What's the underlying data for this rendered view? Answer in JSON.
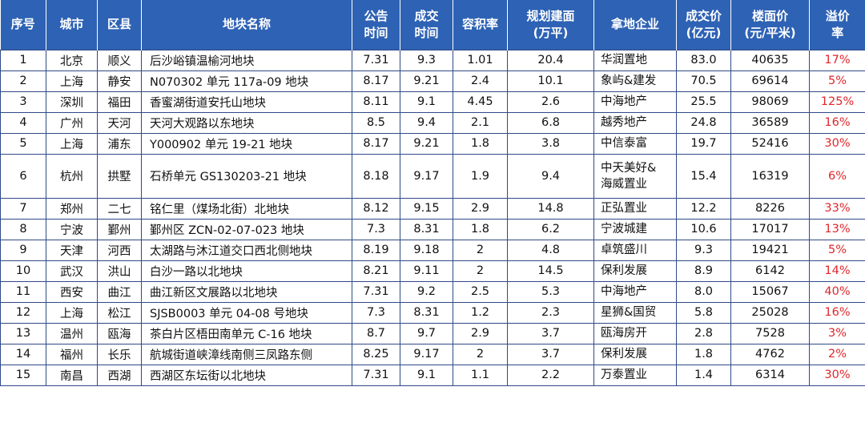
{
  "table": {
    "headers": [
      [
        "序号"
      ],
      [
        "城市"
      ],
      [
        "区县"
      ],
      [
        "地块名称"
      ],
      [
        "公告",
        "时间"
      ],
      [
        "成交",
        "时间"
      ],
      [
        "容积率"
      ],
      [
        "规划建面",
        "(万平)"
      ],
      [
        "拿地企业"
      ],
      [
        "成交价",
        "(亿元)"
      ],
      [
        "楼面价",
        "(元/平米)"
      ],
      [
        "溢价",
        "率"
      ]
    ],
    "rows": [
      {
        "no": "1",
        "city": "北京",
        "district": "顺义",
        "name": "后沙峪镇温榆河地块",
        "announce": "7.31",
        "deal": "9.3",
        "far": "1.01",
        "area": "20.4",
        "company": [
          "华润置地"
        ],
        "price": "83.0",
        "floor_price": "40635",
        "premium": "17%"
      },
      {
        "no": "2",
        "city": "上海",
        "district": "静安",
        "name": "N070302 单元 117a-09 地块",
        "announce": "8.17",
        "deal": "9.21",
        "far": "2.4",
        "area": "10.1",
        "company": [
          "象屿&建发"
        ],
        "price": "70.5",
        "floor_price": "69614",
        "premium": "5%"
      },
      {
        "no": "3",
        "city": "深圳",
        "district": "福田",
        "name": "香蜜湖街道安托山地块",
        "announce": "8.11",
        "deal": "9.1",
        "far": "4.45",
        "area": "2.6",
        "company": [
          "中海地产"
        ],
        "price": "25.5",
        "floor_price": "98069",
        "premium": "125%"
      },
      {
        "no": "4",
        "city": "广州",
        "district": "天河",
        "name": "天河大观路以东地块",
        "announce": "8.5",
        "deal": "9.4",
        "far": "2.1",
        "area": "6.8",
        "company": [
          "越秀地产"
        ],
        "price": "24.8",
        "floor_price": "36589",
        "premium": "16%"
      },
      {
        "no": "5",
        "city": "上海",
        "district": "浦东",
        "name": "Y000902 单元 19-21 地块",
        "announce": "8.17",
        "deal": "9.21",
        "far": "1.8",
        "area": "3.8",
        "company": [
          "中信泰富"
        ],
        "price": "19.7",
        "floor_price": "52416",
        "premium": "30%"
      },
      {
        "no": "6",
        "city": "杭州",
        "district": "拱墅",
        "name": "石桥单元 GS130203-21 地块",
        "announce": "8.18",
        "deal": "9.17",
        "far": "1.9",
        "area": "9.4",
        "company": [
          "中天美好&",
          "海威置业"
        ],
        "price": "15.4",
        "floor_price": "16319",
        "premium": "6%"
      },
      {
        "no": "7",
        "city": "郑州",
        "district": "二七",
        "name": "铭仁里（煤场北街）北地块",
        "announce": "8.12",
        "deal": "9.15",
        "far": "2.9",
        "area": "14.8",
        "company": [
          "正弘置业"
        ],
        "price": "12.2",
        "floor_price": "8226",
        "premium": "33%"
      },
      {
        "no": "8",
        "city": "宁波",
        "district": "鄞州",
        "name": "鄞州区 ZCN-02-07-023 地块",
        "announce": "7.3",
        "deal": "8.31",
        "far": "1.8",
        "area": "6.2",
        "company": [
          "宁波城建"
        ],
        "price": "10.6",
        "floor_price": "17017",
        "premium": "13%"
      },
      {
        "no": "9",
        "city": "天津",
        "district": "河西",
        "name": "太湖路与沐江道交口西北侧地块",
        "announce": "8.19",
        "deal": "9.18",
        "far": "2",
        "area": "4.8",
        "company": [
          "卓筑盛川"
        ],
        "price": "9.3",
        "floor_price": "19421",
        "premium": "5%"
      },
      {
        "no": "10",
        "city": "武汉",
        "district": "洪山",
        "name": "白沙一路以北地块",
        "announce": "8.21",
        "deal": "9.11",
        "far": "2",
        "area": "14.5",
        "company": [
          "保利发展"
        ],
        "price": "8.9",
        "floor_price": "6142",
        "premium": "14%"
      },
      {
        "no": "11",
        "city": "西安",
        "district": "曲江",
        "name": "曲江新区文展路以北地块",
        "announce": "7.31",
        "deal": "9.2",
        "far": "2.5",
        "area": "5.3",
        "company": [
          "中海地产"
        ],
        "price": "8.0",
        "floor_price": "15067",
        "premium": "40%"
      },
      {
        "no": "12",
        "city": "上海",
        "district": "松江",
        "name": "SJSB0003 单元 04-08 号地块",
        "announce": "7.3",
        "deal": "8.31",
        "far": "1.2",
        "area": "2.3",
        "company": [
          "星狮&国贸"
        ],
        "price": "5.8",
        "floor_price": "25028",
        "premium": "16%"
      },
      {
        "no": "13",
        "city": "温州",
        "district": "瓯海",
        "name": "茶白片区梧田南单元 C-16 地块",
        "announce": "8.7",
        "deal": "9.7",
        "far": "2.9",
        "area": "3.7",
        "company": [
          "瓯海房开"
        ],
        "price": "2.8",
        "floor_price": "7528",
        "premium": "3%"
      },
      {
        "no": "14",
        "city": "福州",
        "district": "长乐",
        "name": "航城街道峡漳线南侧三凤路东侧",
        "announce": "8.25",
        "deal": "9.17",
        "far": "2",
        "area": "3.7",
        "company": [
          "保利发展"
        ],
        "price": "1.8",
        "floor_price": "4762",
        "premium": "2%"
      },
      {
        "no": "15",
        "city": "南昌",
        "district": "西湖",
        "name": "西湖区东坛街以北地块",
        "announce": "7.31",
        "deal": "9.1",
        "far": "1.1",
        "area": "2.2",
        "company": [
          "万泰置业"
        ],
        "price": "1.4",
        "floor_price": "6314",
        "premium": "30%"
      }
    ]
  }
}
